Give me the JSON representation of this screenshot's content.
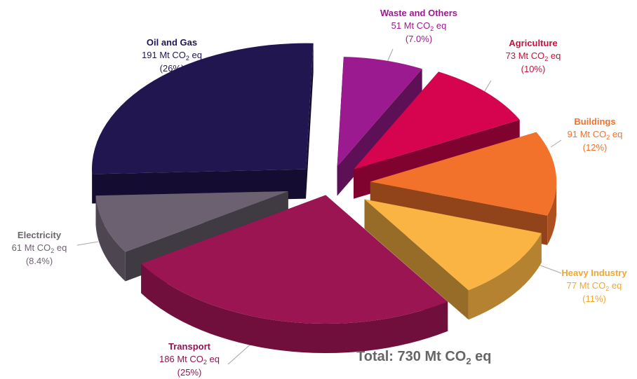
{
  "chart_data": {
    "type": "pie",
    "unit_text": "Mt CO",
    "unit_subscript": "2",
    "unit_suffix": "eq",
    "slices": [
      {
        "name": "Waste and Others",
        "value": 51,
        "percent": "7.0%",
        "color": "#9b1a8f",
        "label_color": "#9b1a8f"
      },
      {
        "name": "Agriculture",
        "value": 73,
        "percent": "10%",
        "color": "#d6034f",
        "label_color": "#c8103d"
      },
      {
        "name": "Buildings",
        "value": 91,
        "percent": "12%",
        "color": "#f2712b",
        "label_color": "#f2712b"
      },
      {
        "name": "Heavy Industry",
        "value": 77,
        "percent": "11%",
        "color": "#fab443",
        "label_color": "#f0a830"
      },
      {
        "name": "Transport",
        "value": 186,
        "percent": "25%",
        "color": "#9b1553",
        "label_color": "#8e1450"
      },
      {
        "name": "Electricity",
        "value": 61,
        "percent": "8.4%",
        "color": "#6b6170",
        "label_color": "#6e6470"
      },
      {
        "name": "Oil and Gas",
        "value": 191,
        "percent": "26%",
        "color": "#221651",
        "label_color": "#221651"
      }
    ],
    "total": {
      "prefix": "Total:",
      "value": 730
    }
  }
}
